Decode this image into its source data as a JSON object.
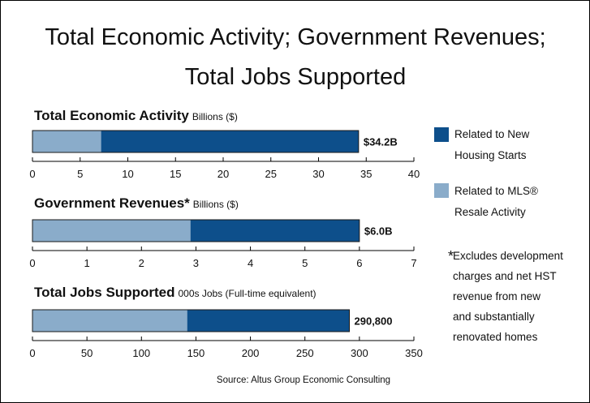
{
  "title_lines": [
    "Total Economic Activity; Government Revenues;",
    "Total Jobs Supported"
  ],
  "legend": [
    {
      "lines": [
        "Related to New",
        "Housing Starts"
      ],
      "color": "#0d4f8b"
    },
    {
      "lines": [
        "Related to MLS®",
        "Resale Activity"
      ],
      "color": "#8aacca"
    }
  ],
  "note": {
    "marker": "*",
    "lines": [
      "Excludes development",
      "charges and net HST",
      "revenue from new",
      "and substantially",
      "renovated homes"
    ]
  },
  "source": "Source: Altus Group Economic Consulting",
  "colors": {
    "new_housing": "#0d4f8b",
    "resale": "#8aacca"
  },
  "chart_data": [
    {
      "type": "bar",
      "orientation": "horizontal",
      "stacked": true,
      "title": "Total Economic Activity",
      "unit": "Billions ($)",
      "series": [
        {
          "name": "Related to MLS® Resale Activity",
          "values": [
            7.2
          ]
        },
        {
          "name": "Related to New Housing Starts",
          "values": [
            27.0
          ]
        }
      ],
      "total_label": "$34.2B",
      "xlim": [
        0,
        40
      ],
      "ticks": [
        0,
        5,
        10,
        15,
        20,
        25,
        30,
        35,
        40
      ]
    },
    {
      "type": "bar",
      "orientation": "horizontal",
      "stacked": true,
      "title": "Government Revenues*",
      "unit": "Billions ($)",
      "series": [
        {
          "name": "Related to MLS® Resale Activity",
          "values": [
            2.9
          ]
        },
        {
          "name": "Related to New Housing Starts",
          "values": [
            3.1
          ]
        }
      ],
      "total_label": "$6.0B",
      "xlim": [
        0,
        7
      ],
      "ticks": [
        0,
        1,
        2,
        3,
        4,
        5,
        6,
        7
      ]
    },
    {
      "type": "bar",
      "orientation": "horizontal",
      "stacked": true,
      "title": "Total Jobs Supported",
      "unit": "000s Jobs (Full-time equivalent)",
      "series": [
        {
          "name": "Related to MLS® Resale Activity",
          "values": [
            142
          ]
        },
        {
          "name": "Related to New Housing Starts",
          "values": [
            148.8
          ]
        }
      ],
      "total_label": "290,800",
      "xlim": [
        0,
        350
      ],
      "ticks": [
        0,
        50,
        100,
        150,
        200,
        250,
        300,
        350
      ]
    }
  ]
}
